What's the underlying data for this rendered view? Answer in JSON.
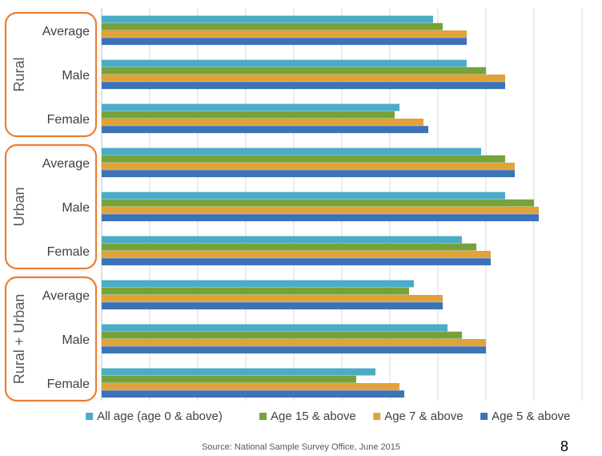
{
  "chart_data": {
    "type": "bar",
    "orientation": "horizontal",
    "title": "",
    "xlabel": "",
    "ylabel": "",
    "xlim": [
      0,
      100
    ],
    "grid": true,
    "legend_position": "bottom",
    "groups": [
      {
        "label": "Rural",
        "categories": [
          "Average",
          "Male",
          "Female"
        ]
      },
      {
        "label": "Urban",
        "categories": [
          "Average",
          "Male",
          "Female"
        ]
      },
      {
        "label": "Rural + Urban",
        "categories": [
          "Average",
          "Male",
          "Female"
        ]
      }
    ],
    "series": [
      {
        "name": "All age (age 0 & above)",
        "color": "#4bacc6",
        "values": [
          69,
          76,
          62,
          79,
          84,
          75,
          65,
          72,
          57
        ]
      },
      {
        "name": "Age 15 & above",
        "color": "#77a23b",
        "values": [
          71,
          80,
          61,
          84,
          90,
          78,
          64,
          75,
          53
        ]
      },
      {
        "name": "Age 7 & above",
        "color": "#e2a23a",
        "values": [
          76,
          84,
          67,
          86,
          91,
          81,
          71,
          80,
          62
        ]
      },
      {
        "name": "Age 5 & above",
        "color": "#3c73b7",
        "values": [
          76,
          84,
          68,
          86,
          91,
          81,
          71,
          80,
          63
        ]
      }
    ]
  },
  "footer": {
    "source": "Source: National Sample Survey Office, June 2015",
    "page_number": "8"
  }
}
